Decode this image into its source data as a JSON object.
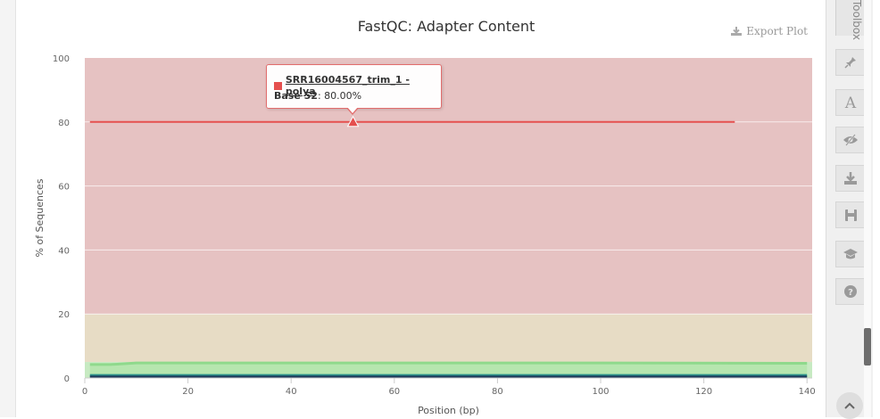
{
  "chart_data": {
    "type": "line",
    "title": "FastQC: Adapter Content",
    "xlabel": "Position (bp)",
    "ylabel": "% of Sequences",
    "xlim": [
      0,
      141
    ],
    "ylim": [
      0,
      100
    ],
    "xticks": [
      0,
      20,
      40,
      60,
      80,
      100,
      120,
      140
    ],
    "yticks": [
      0,
      20,
      40,
      60,
      80,
      100
    ],
    "bands": [
      {
        "from": 20,
        "to": 100,
        "color": "#e6c2c2"
      },
      {
        "from": 5,
        "to": 20,
        "color": "#e7dcc5"
      },
      {
        "from": 0,
        "to": 5,
        "color": "#c7eac2"
      }
    ],
    "series": [
      {
        "name": "SRR16004567_trim_1 - polya",
        "color": "#e5504f",
        "x": [
          1,
          126
        ],
        "y": [
          80,
          80
        ]
      },
      {
        "color": "#8fd98c",
        "x": [
          1,
          5,
          10,
          20,
          60,
          100,
          140
        ],
        "y": [
          4.2,
          4.2,
          4.7,
          4.7,
          4.7,
          4.7,
          4.6
        ]
      },
      {
        "color": "#2a8f8a",
        "x": [
          1,
          140
        ],
        "y": [
          0.8,
          0.8
        ]
      },
      {
        "color": "#1e3a5a",
        "x": [
          1,
          140
        ],
        "y": [
          0.3,
          0.3
        ]
      }
    ],
    "highlight": {
      "x": 52,
      "y": 80
    },
    "tooltip": {
      "series": "SRR16004567_trim_1 - polya",
      "base_label": "Base 52",
      "value": ": 80.00%"
    }
  },
  "export_label": "Export Plot",
  "toolbar": {
    "label": "Toolbox",
    "buttons": [
      {
        "name": "highlight-tool",
        "icon": "pin-icon"
      },
      {
        "name": "rename-tool",
        "icon": "letter-a-icon"
      },
      {
        "name": "hide-samples-tool",
        "icon": "eye-slash-icon"
      },
      {
        "name": "export-tool",
        "icon": "download-icon"
      },
      {
        "name": "save-tool",
        "icon": "save-icon"
      },
      {
        "name": "help-tool",
        "icon": "graduation-cap-icon"
      },
      {
        "name": "about-tool",
        "icon": "question-icon"
      }
    ]
  }
}
